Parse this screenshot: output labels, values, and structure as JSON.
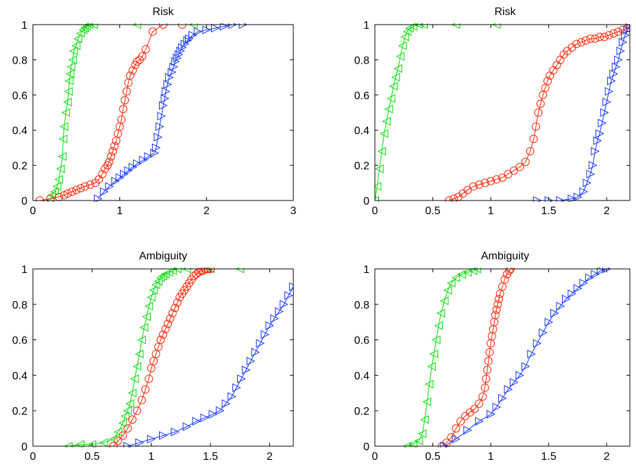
{
  "colors": {
    "green": "#00dd00",
    "red": "#ff2200",
    "blue": "#1133ff",
    "axis": "#000000"
  },
  "chart_data": [
    {
      "type": "line",
      "title": "Risk",
      "xlim": [
        0,
        3
      ],
      "ylim": [
        0,
        1
      ],
      "xticks": [
        0,
        1,
        2,
        3
      ],
      "xtick_labels": [
        "0",
        "1",
        "2",
        "3"
      ],
      "yticks": [
        0,
        0.2,
        0.4,
        0.6,
        0.8,
        1
      ],
      "ytick_labels": [
        "0",
        "0.2",
        "0.4",
        "0.6",
        "0.8",
        "1"
      ],
      "series": [
        {
          "color": "green",
          "marker": "triangle-left",
          "x": [
            0.2,
            0.22,
            0.25,
            0.28,
            0.3,
            0.32,
            0.34,
            0.35,
            0.36,
            0.38,
            0.4,
            0.41,
            0.42,
            0.43,
            0.44,
            0.46,
            0.47,
            0.5,
            0.52,
            0.55,
            0.58,
            0.6,
            0.62,
            0.65,
            0.7,
            1.2,
            1.85
          ],
          "y": [
            0.0,
            0.03,
            0.05,
            0.08,
            0.12,
            0.18,
            0.25,
            0.35,
            0.42,
            0.5,
            0.56,
            0.62,
            0.68,
            0.72,
            0.76,
            0.8,
            0.85,
            0.88,
            0.92,
            0.95,
            0.97,
            0.98,
            0.99,
            1.0,
            1.0,
            1.0,
            1.0
          ]
        },
        {
          "color": "red",
          "marker": "circle",
          "x": [
            0.08,
            0.2,
            0.3,
            0.36,
            0.4,
            0.45,
            0.5,
            0.55,
            0.6,
            0.66,
            0.72,
            0.76,
            0.8,
            0.83,
            0.86,
            0.88,
            0.9,
            0.92,
            0.94,
            0.96,
            0.98,
            1.0,
            1.02,
            1.04,
            1.06,
            1.08,
            1.1,
            1.12,
            1.15,
            1.18,
            1.2,
            1.23,
            1.26,
            1.3,
            1.38,
            1.5,
            1.72
          ],
          "y": [
            0.0,
            0.01,
            0.02,
            0.03,
            0.04,
            0.05,
            0.06,
            0.07,
            0.08,
            0.09,
            0.1,
            0.12,
            0.15,
            0.18,
            0.2,
            0.22,
            0.25,
            0.28,
            0.31,
            0.34,
            0.38,
            0.42,
            0.46,
            0.52,
            0.57,
            0.62,
            0.67,
            0.71,
            0.74,
            0.77,
            0.79,
            0.8,
            0.82,
            0.86,
            0.96,
            1.0,
            1.0
          ]
        },
        {
          "color": "blue",
          "marker": "triangle-right",
          "x": [
            0.75,
            0.82,
            0.88,
            0.95,
            1.0,
            1.05,
            1.1,
            1.15,
            1.2,
            1.27,
            1.33,
            1.4,
            1.42,
            1.44,
            1.46,
            1.48,
            1.5,
            1.52,
            1.53,
            1.55,
            1.57,
            1.6,
            1.62,
            1.64,
            1.66,
            1.68,
            1.7,
            1.72,
            1.75,
            1.78,
            1.8,
            1.84,
            1.9,
            2.0,
            2.1,
            2.2,
            2.3,
            2.42
          ],
          "y": [
            0.01,
            0.05,
            0.08,
            0.11,
            0.13,
            0.15,
            0.17,
            0.19,
            0.21,
            0.23,
            0.25,
            0.27,
            0.3,
            0.36,
            0.42,
            0.48,
            0.54,
            0.58,
            0.62,
            0.66,
            0.7,
            0.73,
            0.76,
            0.79,
            0.81,
            0.83,
            0.85,
            0.87,
            0.89,
            0.91,
            0.92,
            0.94,
            0.96,
            0.97,
            0.98,
            0.99,
            1.0,
            1.0
          ]
        }
      ]
    },
    {
      "type": "line",
      "title": "Risk",
      "xlim": [
        0,
        2.2
      ],
      "ylim": [
        0,
        1
      ],
      "xticks": [
        0,
        0.5,
        1,
        1.5,
        2
      ],
      "xtick_labels": [
        "0",
        "0.5",
        "1",
        "1.5",
        "2"
      ],
      "yticks": [
        0,
        0.2,
        0.4,
        0.6,
        0.8,
        1
      ],
      "ytick_labels": [
        "0",
        "0.2",
        "0.4",
        "0.6",
        "0.8",
        "1"
      ],
      "series": [
        {
          "color": "green",
          "marker": "triangle-left",
          "x": [
            0.0,
            0.02,
            0.04,
            0.06,
            0.08,
            0.1,
            0.12,
            0.14,
            0.16,
            0.18,
            0.2,
            0.22,
            0.24,
            0.26,
            0.28,
            0.3,
            0.33,
            0.38,
            0.42,
            0.7,
            1.05
          ],
          "y": [
            0.0,
            0.08,
            0.18,
            0.28,
            0.38,
            0.45,
            0.52,
            0.58,
            0.65,
            0.7,
            0.75,
            0.82,
            0.88,
            0.93,
            0.96,
            0.98,
            0.99,
            1.0,
            1.0,
            1.0,
            1.0
          ]
        },
        {
          "color": "red",
          "marker": "circle",
          "x": [
            0.64,
            0.68,
            0.72,
            0.76,
            0.8,
            0.85,
            0.9,
            0.95,
            1.0,
            1.05,
            1.1,
            1.15,
            1.2,
            1.25,
            1.3,
            1.34,
            1.37,
            1.39,
            1.41,
            1.43,
            1.45,
            1.47,
            1.49,
            1.51,
            1.54,
            1.57,
            1.6,
            1.63,
            1.66,
            1.7,
            1.74,
            1.78,
            1.82,
            1.86,
            1.9,
            1.94,
            1.98,
            2.02,
            2.06,
            2.1,
            2.14,
            2.18,
            2.2
          ],
          "y": [
            0.0,
            0.01,
            0.02,
            0.04,
            0.06,
            0.08,
            0.09,
            0.1,
            0.11,
            0.12,
            0.13,
            0.15,
            0.17,
            0.19,
            0.22,
            0.28,
            0.35,
            0.42,
            0.5,
            0.55,
            0.6,
            0.64,
            0.68,
            0.71,
            0.74,
            0.77,
            0.8,
            0.83,
            0.85,
            0.87,
            0.89,
            0.9,
            0.91,
            0.92,
            0.92,
            0.93,
            0.93,
            0.94,
            0.95,
            0.96,
            0.97,
            0.98,
            0.98
          ]
        },
        {
          "color": "blue",
          "marker": "triangle-right",
          "x": [
            1.4,
            1.5,
            1.6,
            1.7,
            1.75,
            1.8,
            1.83,
            1.86,
            1.88,
            1.9,
            1.92,
            1.94,
            1.96,
            1.98,
            2.0,
            2.02,
            2.04,
            2.06,
            2.08,
            2.1,
            2.12,
            2.14,
            2.16,
            2.18,
            2.2
          ],
          "y": [
            0.0,
            0.0,
            0.0,
            0.01,
            0.02,
            0.05,
            0.1,
            0.15,
            0.2,
            0.28,
            0.34,
            0.38,
            0.44,
            0.5,
            0.56,
            0.62,
            0.68,
            0.72,
            0.76,
            0.8,
            0.85,
            0.9,
            0.94,
            0.97,
            1.0
          ]
        }
      ]
    },
    {
      "type": "line",
      "title": "Ambiguity",
      "xlim": [
        0,
        2.2
      ],
      "ylim": [
        0,
        1
      ],
      "xticks": [
        0,
        0.5,
        1,
        1.5,
        2
      ],
      "xtick_labels": [
        "0",
        "0.5",
        "1",
        "1.5",
        "2"
      ],
      "yticks": [
        0,
        0.2,
        0.4,
        0.6,
        0.8,
        1
      ],
      "ytick_labels": [
        "0",
        "0.2",
        "0.4",
        "0.6",
        "0.8",
        "1"
      ],
      "series": [
        {
          "color": "green",
          "marker": "triangle-left",
          "x": [
            0.3,
            0.4,
            0.5,
            0.6,
            0.68,
            0.72,
            0.76,
            0.78,
            0.8,
            0.82,
            0.84,
            0.86,
            0.88,
            0.9,
            0.92,
            0.94,
            0.96,
            0.98,
            1.0,
            1.02,
            1.04,
            1.06,
            1.08,
            1.1,
            1.12,
            1.15,
            1.18,
            1.22,
            1.3,
            1.5,
            1.75
          ],
          "y": [
            0.0,
            0.01,
            0.01,
            0.02,
            0.04,
            0.08,
            0.13,
            0.17,
            0.2,
            0.24,
            0.3,
            0.38,
            0.45,
            0.52,
            0.6,
            0.67,
            0.73,
            0.79,
            0.84,
            0.88,
            0.91,
            0.93,
            0.95,
            0.96,
            0.97,
            0.98,
            0.99,
            1.0,
            1.0,
            1.0,
            1.0
          ]
        },
        {
          "color": "red",
          "marker": "circle",
          "x": [
            0.68,
            0.72,
            0.76,
            0.8,
            0.84,
            0.88,
            0.92,
            0.95,
            0.98,
            1.0,
            1.02,
            1.04,
            1.06,
            1.08,
            1.1,
            1.12,
            1.14,
            1.16,
            1.18,
            1.2,
            1.22,
            1.24,
            1.26,
            1.28,
            1.3,
            1.32,
            1.34,
            1.36,
            1.38,
            1.4,
            1.42,
            1.44,
            1.46,
            1.48,
            1.5
          ],
          "y": [
            0.0,
            0.03,
            0.06,
            0.1,
            0.15,
            0.2,
            0.26,
            0.32,
            0.38,
            0.44,
            0.48,
            0.52,
            0.56,
            0.6,
            0.63,
            0.66,
            0.69,
            0.72,
            0.75,
            0.78,
            0.81,
            0.84,
            0.86,
            0.88,
            0.9,
            0.92,
            0.94,
            0.96,
            0.97,
            0.98,
            0.99,
            0.99,
            1.0,
            1.0,
            1.0
          ]
        },
        {
          "color": "blue",
          "marker": "triangle-right",
          "x": [
            0.8,
            0.9,
            1.0,
            1.1,
            1.2,
            1.3,
            1.38,
            1.45,
            1.52,
            1.58,
            1.63,
            1.68,
            1.72,
            1.76,
            1.8,
            1.84,
            1.88,
            1.92,
            1.96,
            2.0,
            2.04,
            2.08,
            2.12,
            2.16,
            2.2
          ],
          "y": [
            0.0,
            0.02,
            0.04,
            0.06,
            0.08,
            0.11,
            0.14,
            0.16,
            0.18,
            0.2,
            0.24,
            0.28,
            0.33,
            0.38,
            0.43,
            0.48,
            0.53,
            0.58,
            0.63,
            0.68,
            0.72,
            0.76,
            0.8,
            0.85,
            0.9
          ]
        }
      ]
    },
    {
      "type": "line",
      "title": "Ambiguity",
      "xlim": [
        0,
        2.2
      ],
      "ylim": [
        0,
        1
      ],
      "xticks": [
        0,
        0.5,
        1,
        1.5,
        2
      ],
      "xtick_labels": [
        "0",
        "0.5",
        "1",
        "1.5",
        "2"
      ],
      "yticks": [
        0,
        0.2,
        0.4,
        0.6,
        0.8,
        1
      ],
      "ytick_labels": [
        "0",
        "0.2",
        "0.4",
        "0.6",
        "0.8",
        "1"
      ],
      "series": [
        {
          "color": "green",
          "marker": "triangle-left",
          "x": [
            0.28,
            0.33,
            0.38,
            0.41,
            0.43,
            0.45,
            0.47,
            0.49,
            0.51,
            0.53,
            0.55,
            0.57,
            0.6,
            0.63,
            0.66,
            0.7,
            0.75,
            0.8,
            0.85,
            0.88
          ],
          "y": [
            0.0,
            0.01,
            0.03,
            0.07,
            0.15,
            0.25,
            0.35,
            0.45,
            0.52,
            0.6,
            0.68,
            0.75,
            0.82,
            0.88,
            0.92,
            0.95,
            0.97,
            0.98,
            0.99,
            1.0
          ]
        },
        {
          "color": "red",
          "marker": "circle",
          "x": [
            0.58,
            0.62,
            0.66,
            0.7,
            0.74,
            0.78,
            0.82,
            0.86,
            0.9,
            0.93,
            0.95,
            0.96,
            0.97,
            0.98,
            0.99,
            1.0,
            1.01,
            1.02,
            1.03,
            1.04,
            1.05,
            1.06,
            1.07,
            1.08,
            1.1,
            1.12,
            1.14,
            1.16,
            1.17
          ],
          "y": [
            0.0,
            0.02,
            0.05,
            0.1,
            0.14,
            0.17,
            0.19,
            0.21,
            0.24,
            0.28,
            0.33,
            0.38,
            0.43,
            0.48,
            0.53,
            0.58,
            0.62,
            0.66,
            0.7,
            0.74,
            0.77,
            0.8,
            0.83,
            0.86,
            0.9,
            0.94,
            0.97,
            0.99,
            1.0
          ]
        },
        {
          "color": "blue",
          "marker": "triangle-right",
          "x": [
            0.6,
            0.7,
            0.8,
            0.9,
            1.0,
            1.05,
            1.1,
            1.15,
            1.2,
            1.25,
            1.3,
            1.35,
            1.4,
            1.45,
            1.5,
            1.55,
            1.6,
            1.65,
            1.7,
            1.75,
            1.8,
            1.85,
            1.9,
            1.95,
            2.0
          ],
          "y": [
            0.0,
            0.04,
            0.09,
            0.14,
            0.18,
            0.22,
            0.27,
            0.32,
            0.36,
            0.4,
            0.45,
            0.52,
            0.58,
            0.64,
            0.7,
            0.75,
            0.79,
            0.83,
            0.86,
            0.89,
            0.92,
            0.95,
            0.97,
            0.99,
            1.0
          ]
        }
      ]
    }
  ]
}
